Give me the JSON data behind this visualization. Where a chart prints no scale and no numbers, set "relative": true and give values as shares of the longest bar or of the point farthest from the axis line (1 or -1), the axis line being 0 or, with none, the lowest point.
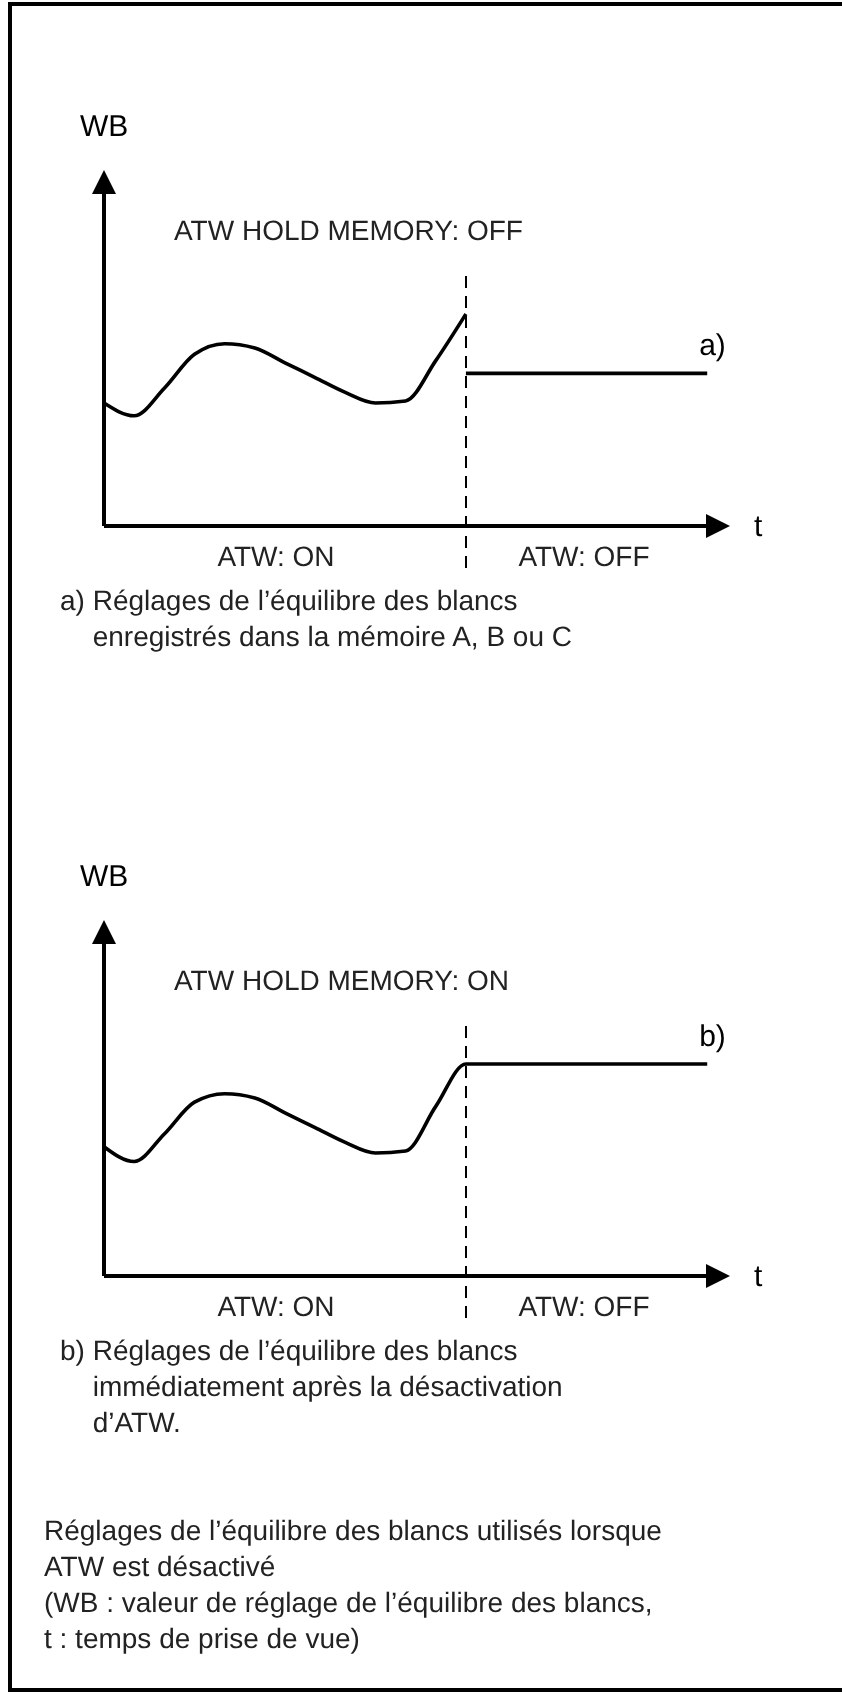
{
  "chart_data": [
    {
      "type": "line",
      "relative": true,
      "ylabel": "WB",
      "xlabel": "t",
      "categories": [
        null,
        null,
        null,
        null,
        null,
        null,
        null,
        null,
        null,
        null,
        null,
        null,
        null,
        null,
        null,
        null,
        null,
        null,
        null,
        null,
        null
      ],
      "series": [
        {
          "color": "#000000",
          "values": [
            0.58,
            0.52,
            0.65,
            0.81,
            0.86,
            0.84,
            0.77,
            0.7,
            0.63,
            0.58,
            0.59,
            0.78,
            1,
            null,
            null,
            null,
            null,
            null,
            null,
            null,
            null
          ]
        },
        {
          "name": "a)",
          "color": "#000000",
          "values": [
            null,
            null,
            null,
            null,
            null,
            null,
            null,
            null,
            null,
            null,
            null,
            null,
            0.72,
            0.72,
            0.72,
            0.72,
            0.72,
            0.72,
            0.72,
            0.72,
            0.72
          ]
        }
      ],
      "annotations": [
        "ATW HOLD MEMORY: OFF",
        "ATW: ON",
        "ATW: OFF",
        "a) Réglages de l’équilibre des blancs enregistrés dans la mémoire A, B ou C"
      ]
    },
    {
      "type": "line",
      "relative": true,
      "ylabel": "WB",
      "xlabel": "t",
      "categories": [
        null,
        null,
        null,
        null,
        null,
        null,
        null,
        null,
        null,
        null,
        null,
        null,
        null,
        null,
        null,
        null,
        null,
        null,
        null,
        null,
        null
      ],
      "series": [
        {
          "name": "b)",
          "color": "#000000",
          "values": [
            0.61,
            0.54,
            0.67,
            0.82,
            0.86,
            0.84,
            0.77,
            0.7,
            0.63,
            0.58,
            0.59,
            0.8,
            1,
            1,
            1,
            1,
            1,
            1,
            1,
            1,
            1
          ]
        }
      ],
      "annotations": [
        "ATW HOLD MEMORY: ON",
        "ATW: ON",
        "ATW: OFF",
        "b) Réglages de l’équilibre des blancs immédiatement après la désactivation d’ATW.",
        "Réglages de l’équilibre des blancs utilisés lorsque ATW est désactivé",
        "(WB : valeur de réglage de l’équilibre des blancs, t : temps de prise de vue)"
      ]
    }
  ]
}
